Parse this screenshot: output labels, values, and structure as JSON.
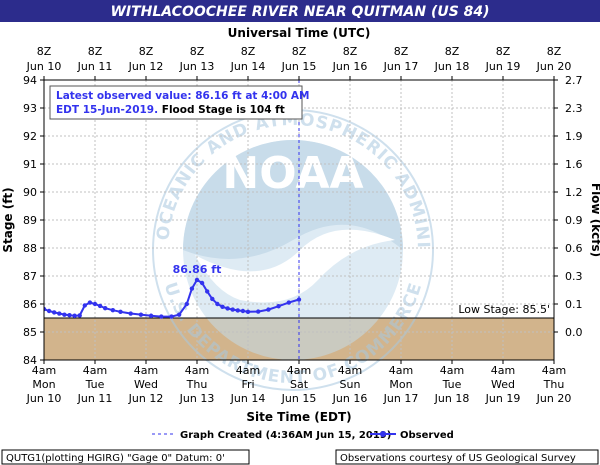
{
  "chart_data": {
    "type": "line",
    "title": "WITHLACOOCHEE RIVER NEAR QUITMAN (US 84)",
    "top_axis_title": "Universal Time (UTC)",
    "top_ticks": [
      {
        "label": [
          "8Z",
          "Jun 10"
        ]
      },
      {
        "label": [
          "8Z",
          "Jun 11"
        ]
      },
      {
        "label": [
          "8Z",
          "Jun 12"
        ]
      },
      {
        "label": [
          "8Z",
          "Jun 13"
        ]
      },
      {
        "label": [
          "8Z",
          "Jun 14"
        ]
      },
      {
        "label": [
          "8Z",
          "Jun 15"
        ]
      },
      {
        "label": [
          "8Z",
          "Jun 16"
        ]
      },
      {
        "label": [
          "8Z",
          "Jun 17"
        ]
      },
      {
        "label": [
          "8Z",
          "Jun 18"
        ]
      },
      {
        "label": [
          "8Z",
          "Jun 19"
        ]
      },
      {
        "label": [
          "8Z",
          "Jun 20"
        ]
      }
    ],
    "bottom_axis_title": "Site Time (EDT)",
    "bottom_ticks": [
      [
        "4am",
        "Mon",
        "Jun 10"
      ],
      [
        "4am",
        "Tue",
        "Jun 11"
      ],
      [
        "4am",
        "Wed",
        "Jun 12"
      ],
      [
        "4am",
        "Thu",
        "Jun 13"
      ],
      [
        "4am",
        "Fri",
        "Jun 14"
      ],
      [
        "4am",
        "Sat",
        "Jun 15"
      ],
      [
        "4am",
        "Sun",
        "Jun 16"
      ],
      [
        "4am",
        "Mon",
        "Jun 17"
      ],
      [
        "4am",
        "Tue",
        "Jun 18"
      ],
      [
        "4am",
        "Wed",
        "Jun 19"
      ],
      [
        "4am",
        "Thu",
        "Jun 20"
      ]
    ],
    "ylabel_left": "Stage (ft)",
    "ylabel_right": "Flow (kcfs)",
    "ylim": [
      84,
      94
    ],
    "y_ticks_left": [
      84,
      85,
      86,
      87,
      88,
      89,
      90,
      91,
      92,
      93,
      94
    ],
    "y_ticks_right": [
      {
        "stage": 85,
        "label": "0.0"
      },
      {
        "stage": 86,
        "label": "0.1"
      },
      {
        "stage": 87,
        "label": "0.3"
      },
      {
        "stage": 88,
        "label": "0.6"
      },
      {
        "stage": 89,
        "label": "0.9"
      },
      {
        "stage": 90,
        "label": "1.2"
      },
      {
        "stage": 91,
        "label": "1.6"
      },
      {
        "stage": 92,
        "label": "1.9"
      },
      {
        "stage": 93,
        "label": "2.3"
      },
      {
        "stage": 94,
        "label": "2.7"
      }
    ],
    "xlim_days": [
      0,
      10
    ],
    "grid": true,
    "low_stage": {
      "value": 85.5,
      "label": "Low Stage: 85.5'"
    },
    "graph_created_day": 5,
    "series": [
      {
        "name": "Observed",
        "color": "#3333ee",
        "days": [
          0.0,
          0.1,
          0.2,
          0.3,
          0.4,
          0.5,
          0.6,
          0.7,
          0.8,
          0.9,
          1.0,
          1.1,
          1.2,
          1.35,
          1.5,
          1.7,
          1.9,
          2.1,
          2.3,
          2.5,
          2.65,
          2.8,
          2.9,
          3.0,
          3.1,
          3.2,
          3.3,
          3.4,
          3.5,
          3.6,
          3.7,
          3.8,
          3.9,
          4.0,
          4.2,
          4.4,
          4.6,
          4.8,
          5.0
        ],
        "values": [
          85.82,
          85.75,
          85.7,
          85.66,
          85.62,
          85.6,
          85.58,
          85.59,
          85.95,
          86.05,
          86.0,
          85.93,
          85.85,
          85.78,
          85.72,
          85.66,
          85.62,
          85.58,
          85.55,
          85.55,
          85.62,
          86.0,
          86.55,
          86.86,
          86.75,
          86.45,
          86.18,
          86.0,
          85.9,
          85.84,
          85.8,
          85.77,
          85.75,
          85.72,
          85.73,
          85.8,
          85.92,
          86.05,
          86.16
        ]
      }
    ],
    "peak_label": "86.86 ft",
    "info_box": {
      "line1": "Latest observed value: 86.16 ft at 4:00 AM",
      "line2a": "EDT 15-Jun-2019.",
      "line2b": " Flood Stage is 104 ft"
    },
    "legend": {
      "created": "Graph Created (4:36AM Jun 15, 2019)",
      "observed": "Observed"
    },
    "watermark": "NATIONAL OCEANIC AND ATMOSPHERIC ADMINISTRATION · U.S. DEPARTMENT OF COMMERCE · NOAA",
    "footer_left": "QUTG1(plotting HGIRG) \"Gage 0\" Datum: 0'",
    "footer_right": "Observations courtesy of US Geological Survey",
    "colors": {
      "title_bg": "#2c2c8c",
      "plot_bg": "#ffffff",
      "grid": "#c0c0c0",
      "below_low": "#d2b48c",
      "series": "#3333ee",
      "watermark": "#a8c8e0"
    }
  }
}
